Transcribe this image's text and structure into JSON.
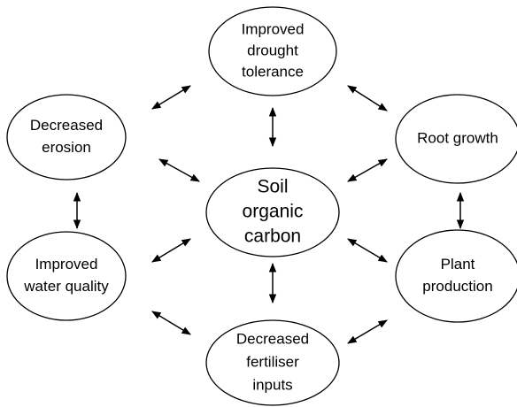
{
  "nodes": [
    {
      "lines": [
        "Soil",
        "organic",
        "carbon"
      ]
    },
    {
      "lines": [
        "Improved",
        "drought",
        "tolerance"
      ]
    },
    {
      "lines": [
        "Decreased",
        "erosion"
      ]
    },
    {
      "lines": [
        "Root growth"
      ]
    },
    {
      "lines": [
        "Improved",
        "water quality"
      ]
    },
    {
      "lines": [
        "Plant",
        "production"
      ]
    },
    {
      "lines": [
        "Decreased",
        "fertiliser",
        "inputs"
      ]
    }
  ]
}
